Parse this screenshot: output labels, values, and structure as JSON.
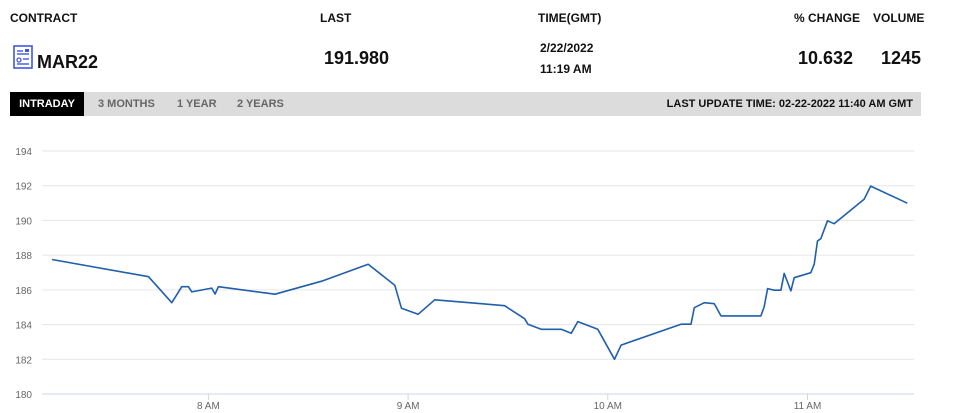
{
  "header": {
    "contract_label": "CONTRACT",
    "last_label": "LAST",
    "time_label": "TIME(GMT)",
    "change_label": "% CHANGE",
    "volume_label": "VOLUME",
    "contract": "MAR22",
    "contract_icon": "contract-document-icon",
    "last": "191.980",
    "date": "2/22/2022",
    "time": "11:19 AM",
    "change": "10.632",
    "volume": "1245"
  },
  "tabs": [
    {
      "label": "INTRADAY",
      "active": true
    },
    {
      "label": "3 MONTHS",
      "active": false
    },
    {
      "label": "1 YEAR",
      "active": false
    },
    {
      "label": "2 YEARS",
      "active": false
    }
  ],
  "last_update": "LAST UPDATE TIME: 02-22-2022 11:40 AM GMT",
  "colors": {
    "line": "#1f5fad",
    "grid": "#e6e6e6",
    "axis": "#ccd6eb",
    "active_tab": "#000000",
    "tab_bar": "#dcdcdc"
  },
  "chart_data": {
    "type": "line",
    "title": "",
    "xlabel": "",
    "ylabel": "",
    "ylim": [
      180,
      194
    ],
    "xlim": [
      "07:10",
      "11:32"
    ],
    "yticks": [
      180,
      182,
      184,
      186,
      188,
      190,
      192,
      194
    ],
    "xticks": [
      {
        "time": "08:00",
        "label": "8 AM"
      },
      {
        "time": "09:00",
        "label": "9 AM"
      },
      {
        "time": "10:00",
        "label": "10 AM"
      },
      {
        "time": "11:00",
        "label": "11 AM"
      }
    ],
    "grid": true,
    "series": [
      {
        "points": [
          [
            "07:13",
            187.75
          ],
          [
            "07:42",
            186.76
          ],
          [
            "07:49",
            185.26
          ],
          [
            "07:52",
            186.18
          ],
          [
            "07:54",
            186.18
          ],
          [
            "07:55",
            185.88
          ],
          [
            "08:01",
            186.1
          ],
          [
            "08:02",
            185.76
          ],
          [
            "08:03",
            186.18
          ],
          [
            "08:20",
            185.75
          ],
          [
            "08:34",
            186.5
          ],
          [
            "08:48",
            187.47
          ],
          [
            "08:56",
            186.26
          ],
          [
            "08:58",
            184.94
          ],
          [
            "09:03",
            184.59
          ],
          [
            "09:08",
            185.43
          ],
          [
            "09:22",
            185.2
          ],
          [
            "09:29",
            185.09
          ],
          [
            "09:35",
            184.34
          ],
          [
            "09:36",
            184.02
          ],
          [
            "09:40",
            183.73
          ],
          [
            "09:46",
            183.73
          ],
          [
            "09:49",
            183.5
          ],
          [
            "09:51",
            184.17
          ],
          [
            "09:57",
            183.73
          ],
          [
            "10:02",
            182.0
          ],
          [
            "10:04",
            182.82
          ],
          [
            "10:22",
            184.02
          ],
          [
            "10:25",
            184.02
          ],
          [
            "10:26",
            184.97
          ],
          [
            "10:29",
            185.26
          ],
          [
            "10:32",
            185.2
          ],
          [
            "10:34",
            184.5
          ],
          [
            "10:46",
            184.5
          ],
          [
            "10:47",
            185.03
          ],
          [
            "10:48",
            186.07
          ],
          [
            "10:50",
            185.98
          ],
          [
            "10:52",
            185.98
          ],
          [
            "10:53",
            186.95
          ],
          [
            "10:55",
            185.94
          ],
          [
            "10:56",
            186.7
          ],
          [
            "11:01",
            186.99
          ],
          [
            "11:02",
            187.47
          ],
          [
            "11:03",
            188.82
          ],
          [
            "11:04",
            188.95
          ],
          [
            "11:06",
            189.98
          ],
          [
            "11:08",
            189.81
          ],
          [
            "11:17",
            191.22
          ],
          [
            "11:19",
            191.98
          ],
          [
            "11:30",
            190.99
          ]
        ]
      }
    ]
  }
}
